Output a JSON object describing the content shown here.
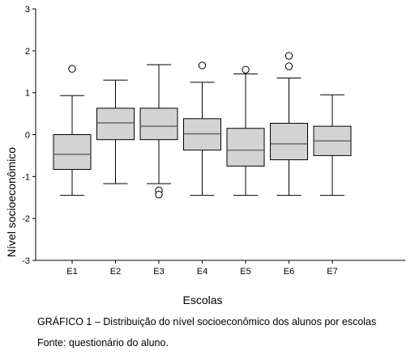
{
  "chart_data": {
    "type": "box",
    "xlabel": "Escolas",
    "ylabel": "Nível socioeconômico",
    "ylim": [
      -3,
      3
    ],
    "yticks": [
      -3,
      -2,
      -1,
      0,
      1,
      2,
      3
    ],
    "categories": [
      "E1",
      "E2",
      "E3",
      "E4",
      "E5",
      "E6",
      "E7"
    ],
    "boxes": [
      {
        "name": "E1",
        "whisker_low": -1.45,
        "q1": -0.83,
        "median": -0.47,
        "q3": 0.0,
        "whisker_high": 0.93,
        "outliers": [
          1.57
        ]
      },
      {
        "name": "E2",
        "whisker_low": -1.17,
        "q1": -0.12,
        "median": 0.28,
        "q3": 0.63,
        "whisker_high": 1.3,
        "outliers": []
      },
      {
        "name": "E3",
        "whisker_low": -1.17,
        "q1": -0.12,
        "median": 0.2,
        "q3": 0.63,
        "whisker_high": 1.67,
        "outliers": [
          -1.33,
          -1.43
        ]
      },
      {
        "name": "E4",
        "whisker_low": -1.45,
        "q1": -0.37,
        "median": 0.02,
        "q3": 0.38,
        "whisker_high": 1.25,
        "outliers": [
          1.65
        ]
      },
      {
        "name": "E5",
        "whisker_low": -1.45,
        "q1": -0.75,
        "median": -0.37,
        "q3": 0.15,
        "whisker_high": 1.45,
        "outliers": [
          1.55
        ]
      },
      {
        "name": "E6",
        "whisker_low": -1.45,
        "q1": -0.6,
        "median": -0.22,
        "q3": 0.27,
        "whisker_high": 1.35,
        "outliers": [
          1.88,
          1.63
        ]
      },
      {
        "name": "E7",
        "whisker_low": -1.45,
        "q1": -0.5,
        "median": -0.15,
        "q3": 0.2,
        "whisker_high": 0.95,
        "outliers": []
      }
    ],
    "colors": {
      "box_fill": "#d3d3d3",
      "stroke": "#000000"
    },
    "grid": false,
    "legend": "none"
  },
  "caption": "GRÁFICO 1 – Distribuição do nível socioeconômico dos alunos por escolas",
  "source": "Fonte: questionário do aluno."
}
